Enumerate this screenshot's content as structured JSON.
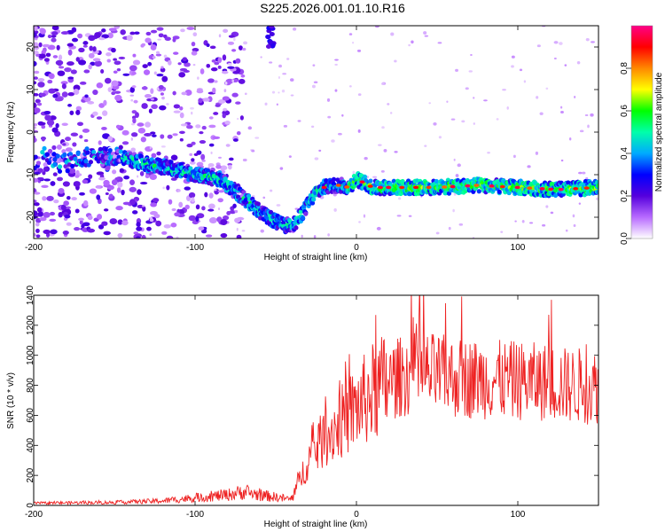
{
  "title": "S225.2026.001.01.10.R16",
  "chart_data": [
    {
      "type": "heatmap",
      "title": "S225.2026.001.01.10.R16",
      "xlabel": "Height of straight line (km)",
      "ylabel": "Frequency (Hz)",
      "xlim": [
        -200,
        150
      ],
      "ylim": [
        -25,
        25
      ],
      "x_ticks": [
        -200,
        -100,
        0,
        100
      ],
      "y_ticks": [
        -20,
        -10,
        0,
        10,
        20
      ],
      "colorbar": {
        "label": "Normalized spectral amplitude",
        "range": [
          0.0,
          1.0
        ],
        "ticks": [
          "0.0",
          "0.2",
          "0.4",
          "0.6",
          "0.8"
        ],
        "colors": [
          "#ffffff",
          "#b86bff",
          "#5500dd",
          "#0000ff",
          "#00aaff",
          "#00ffaa",
          "#00ff00",
          "#ffff00",
          "#ff8800",
          "#ff0000",
          "#ff0088"
        ]
      },
      "ridge": {
        "x": [
          -145,
          -130,
          -115,
          -100,
          -85,
          -75,
          -65,
          -55,
          -45,
          -38,
          -30,
          -25,
          -20,
          -15,
          -10,
          -5,
          0,
          10,
          25,
          50,
          75,
          100,
          125,
          150
        ],
        "y": [
          -6,
          -7.5,
          -8.5,
          -10,
          -11,
          -14,
          -17,
          -20,
          -22,
          -21.5,
          -17,
          -14,
          -13,
          -12.5,
          -12.5,
          -13,
          -11,
          -13,
          -13,
          -13,
          -12.5,
          -13,
          -13.5,
          -13
        ]
      }
    },
    {
      "type": "line",
      "xlabel": "Height of straight line (km)",
      "ylabel": "SNR (10 * v/v)",
      "xlim": [
        -200,
        150
      ],
      "ylim": [
        0,
        1400
      ],
      "x_ticks": [
        -200,
        -100,
        0,
        100
      ],
      "y_ticks": [
        0,
        200,
        400,
        600,
        800,
        1000,
        1200,
        1400
      ],
      "series": [
        {
          "name": "SNR",
          "color": "#ee2222",
          "envelope": {
            "x": [
              -200,
              -150,
              -120,
              -100,
              -80,
              -70,
              -60,
              -40,
              -36,
              -30,
              -20,
              -10,
              0,
              10,
              20,
              30,
              40,
              50,
              60,
              80,
              100,
              120,
              130,
              140,
              145,
              150
            ],
            "y": [
              15,
              20,
              30,
              50,
              70,
              90,
              70,
              40,
              150,
              300,
              450,
              550,
              650,
              750,
              820,
              870,
              880,
              870,
              850,
              840,
              830,
              820,
              800,
              800,
              780,
              800
            ]
          }
        }
      ]
    }
  ]
}
